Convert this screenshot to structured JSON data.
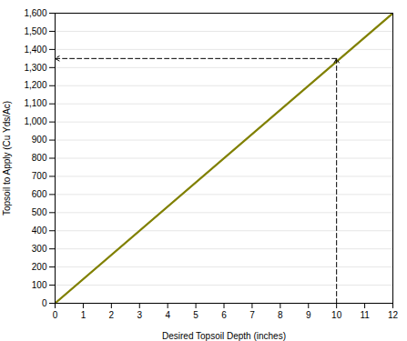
{
  "chart_data": {
    "type": "line",
    "xlabel": "Desired Topsoil Depth (inches)",
    "ylabel": "Topsoil to Apply (Cu Yds/Ac)",
    "x": [
      0,
      12
    ],
    "values": [
      0,
      1600
    ],
    "color": "#808000",
    "xlim": [
      0,
      12
    ],
    "ylim": [
      0,
      1600
    ],
    "xticks": [
      0,
      1,
      2,
      3,
      4,
      5,
      6,
      7,
      8,
      9,
      10,
      11,
      12
    ],
    "yticks": [
      0,
      100,
      200,
      300,
      400,
      500,
      600,
      700,
      800,
      900,
      {
        "value": 1000,
        "label": "1,000"
      },
      {
        "value": 1100,
        "label": "1,100"
      },
      {
        "value": 1200,
        "label": "1,200"
      },
      {
        "value": 1300,
        "label": "1,300"
      },
      {
        "value": 1400,
        "label": "1,400"
      },
      {
        "value": 1500,
        "label": "1,500"
      },
      {
        "value": 1600,
        "label": "1,600"
      }
    ],
    "grid": true,
    "annotations": [
      {
        "x": 10,
        "y": 1350,
        "color": "#000000",
        "line_style": "dashed"
      }
    ]
  }
}
